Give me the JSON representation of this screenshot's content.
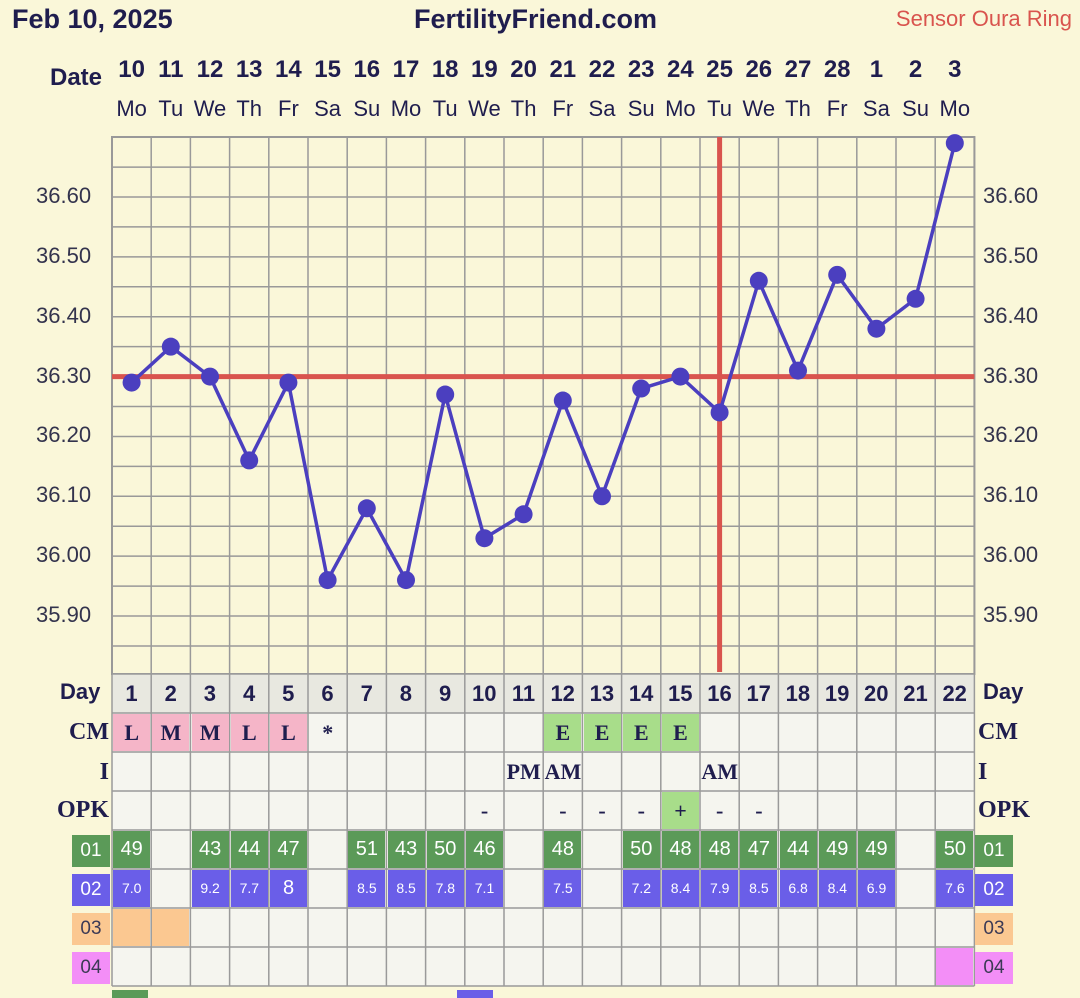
{
  "header": {
    "date": "Feb 10, 2025",
    "site": "FertilityFriend.com",
    "sensor": "Sensor Oura Ring"
  },
  "labels": {
    "date": "Date",
    "day": "Day",
    "cm": "CM",
    "i": "I",
    "opk": "OPK",
    "o1": "01",
    "o2": "02",
    "o3": "03",
    "o4": "04"
  },
  "dates": [
    "10",
    "11",
    "12",
    "13",
    "14",
    "15",
    "16",
    "17",
    "18",
    "19",
    "20",
    "21",
    "22",
    "23",
    "24",
    "25",
    "26",
    "27",
    "28",
    "1",
    "2",
    "3"
  ],
  "weekdays": [
    "Mo",
    "Tu",
    "We",
    "Th",
    "Fr",
    "Sa",
    "Su",
    "Mo",
    "Tu",
    "We",
    "Th",
    "Fr",
    "Sa",
    "Su",
    "Mo",
    "Tu",
    "We",
    "Th",
    "Fr",
    "Sa",
    "Su",
    "Mo"
  ],
  "days": [
    "1",
    "2",
    "3",
    "4",
    "5",
    "6",
    "7",
    "8",
    "9",
    "10",
    "11",
    "12",
    "13",
    "14",
    "15",
    "16",
    "17",
    "18",
    "19",
    "20",
    "21",
    "22"
  ],
  "yticks": [
    "36.60",
    "36.50",
    "36.40",
    "36.30",
    "36.20",
    "36.10",
    "36.00",
    "35.90"
  ],
  "cm": [
    "L",
    "M",
    "M",
    "L",
    "L",
    "*",
    "",
    "",
    "",
    "",
    "",
    "E",
    "E",
    "E",
    "E",
    "",
    "",
    "",
    "",
    "",
    "",
    ""
  ],
  "intercourse": [
    "",
    "",
    "",
    "",
    "",
    "",
    "",
    "",
    "",
    "",
    "PM",
    "AM",
    "",
    "",
    "",
    "AM",
    "",
    "",
    "",
    "",
    "",
    ""
  ],
  "opk": [
    "",
    "",
    "",
    "",
    "",
    "",
    "",
    "",
    "",
    "-",
    "",
    "-",
    "-",
    "-",
    "+",
    "-",
    "-",
    "",
    "",
    "",
    "",
    ""
  ],
  "o1": [
    "49",
    "",
    "43",
    "44",
    "47",
    "",
    "51",
    "43",
    "50",
    "46",
    "",
    "48",
    "",
    "50",
    "48",
    "48",
    "47",
    "44",
    "49",
    "49",
    "",
    "50"
  ],
  "o2": [
    "7.0",
    "",
    "9.2",
    "7.7",
    "8",
    "",
    "8.5",
    "8.5",
    "7.8",
    "7.1",
    "",
    "7.5",
    "",
    "7.2",
    "8.4",
    "7.9",
    "8.5",
    "6.8",
    "8.4",
    "6.9",
    "",
    "7.6"
  ],
  "o3": [
    true,
    true,
    false,
    false,
    false,
    false,
    false,
    false,
    false,
    false,
    false,
    false,
    false,
    false,
    false,
    false,
    false,
    false,
    false,
    false,
    false,
    false
  ],
  "o4": [
    false,
    false,
    false,
    false,
    false,
    false,
    false,
    false,
    false,
    false,
    false,
    false,
    false,
    false,
    false,
    false,
    false,
    false,
    false,
    false,
    false,
    true
  ],
  "colors": {
    "background": "#faf7d9",
    "line": "#4b3fbf",
    "coverline": "#d9544e",
    "grid": "#999999"
  },
  "chart_data": {
    "type": "line",
    "title": "",
    "xlabel": "Day",
    "ylabel": "",
    "x": [
      1,
      2,
      3,
      4,
      5,
      6,
      7,
      8,
      9,
      10,
      11,
      12,
      13,
      14,
      15,
      16,
      17,
      18,
      19,
      20,
      21,
      22
    ],
    "series": [
      {
        "values": [
          36.29,
          36.35,
          36.3,
          36.16,
          36.29,
          35.96,
          36.08,
          35.96,
          36.27,
          36.03,
          36.07,
          36.26,
          36.1,
          36.28,
          36.3,
          36.24,
          36.46,
          36.31,
          36.47,
          36.38,
          36.43,
          36.69
        ]
      }
    ],
    "coverline": 36.3,
    "ovulation_marker_day": 16,
    "ylim": [
      35.85,
      36.7
    ],
    "grid": true
  }
}
